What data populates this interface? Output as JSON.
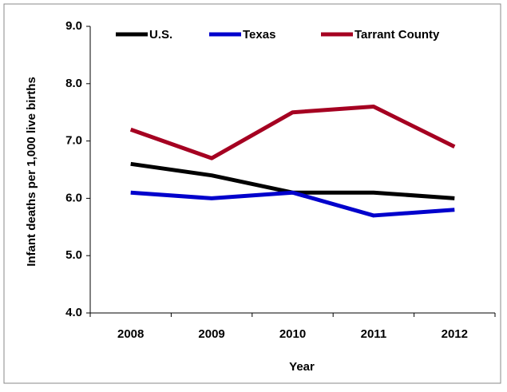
{
  "chart_data": {
    "type": "line",
    "x_label": "Year",
    "y_label": "Infant deaths per 1,000 live births",
    "categories": [
      "2008",
      "2009",
      "2010",
      "2011",
      "2012"
    ],
    "series": [
      {
        "name": "U.S.",
        "color": "#000000",
        "values": [
          6.6,
          6.4,
          6.1,
          6.1,
          6.0
        ]
      },
      {
        "name": "Texas",
        "color": "#0000cc",
        "values": [
          6.1,
          6.0,
          6.1,
          5.7,
          5.8
        ]
      },
      {
        "name": "Tarrant County",
        "color": "#a50021",
        "values": [
          7.2,
          6.7,
          7.5,
          7.6,
          6.9
        ]
      }
    ],
    "ylim": [
      4,
      9
    ],
    "yticks": [
      {
        "value": 4,
        "label": "4.0"
      },
      {
        "value": 5,
        "label": "5.0"
      },
      {
        "value": 6,
        "label": "6.0"
      },
      {
        "value": 7,
        "label": "7.0"
      },
      {
        "value": 8,
        "label": "8.0"
      },
      {
        "value": 9,
        "label": "9.0"
      }
    ],
    "legend": "top"
  }
}
